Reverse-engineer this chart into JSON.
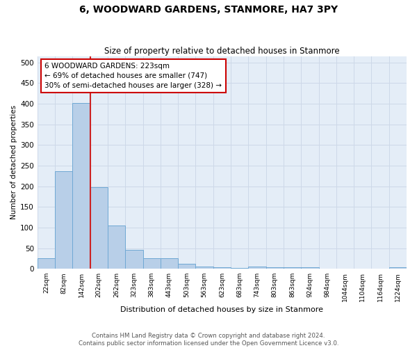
{
  "title": "6, WOODWARD GARDENS, STANMORE, HA7 3PY",
  "subtitle": "Size of property relative to detached houses in Stanmore",
  "xlabel": "Distribution of detached houses by size in Stanmore",
  "ylabel": "Number of detached properties",
  "categories": [
    "22sqm",
    "82sqm",
    "142sqm",
    "202sqm",
    "262sqm",
    "323sqm",
    "383sqm",
    "443sqm",
    "503sqm",
    "563sqm",
    "623sqm",
    "683sqm",
    "743sqm",
    "803sqm",
    "863sqm",
    "924sqm",
    "984sqm",
    "1044sqm",
    "1104sqm",
    "1164sqm",
    "1224sqm"
  ],
  "values": [
    25,
    237,
    402,
    197,
    105,
    46,
    25,
    25,
    12,
    5,
    3,
    2,
    5,
    3,
    4,
    4,
    1,
    1,
    1,
    1,
    4
  ],
  "bar_color": "#b8cfe8",
  "bar_edge_color": "#6fa8d4",
  "grid_color": "#cdd8e8",
  "background_color": "#e4edf7",
  "red_line_index": 3,
  "annotation_text": "6 WOODWARD GARDENS: 223sqm\n← 69% of detached houses are smaller (747)\n30% of semi-detached houses are larger (328) →",
  "annotation_box_color": "#ffffff",
  "annotation_box_edge_color": "#cc0000",
  "footer_line1": "Contains HM Land Registry data © Crown copyright and database right 2024.",
  "footer_line2": "Contains public sector information licensed under the Open Government Licence v3.0.",
  "ylim": [
    0,
    515
  ],
  "yticks": [
    0,
    50,
    100,
    150,
    200,
    250,
    300,
    350,
    400,
    450,
    500
  ]
}
